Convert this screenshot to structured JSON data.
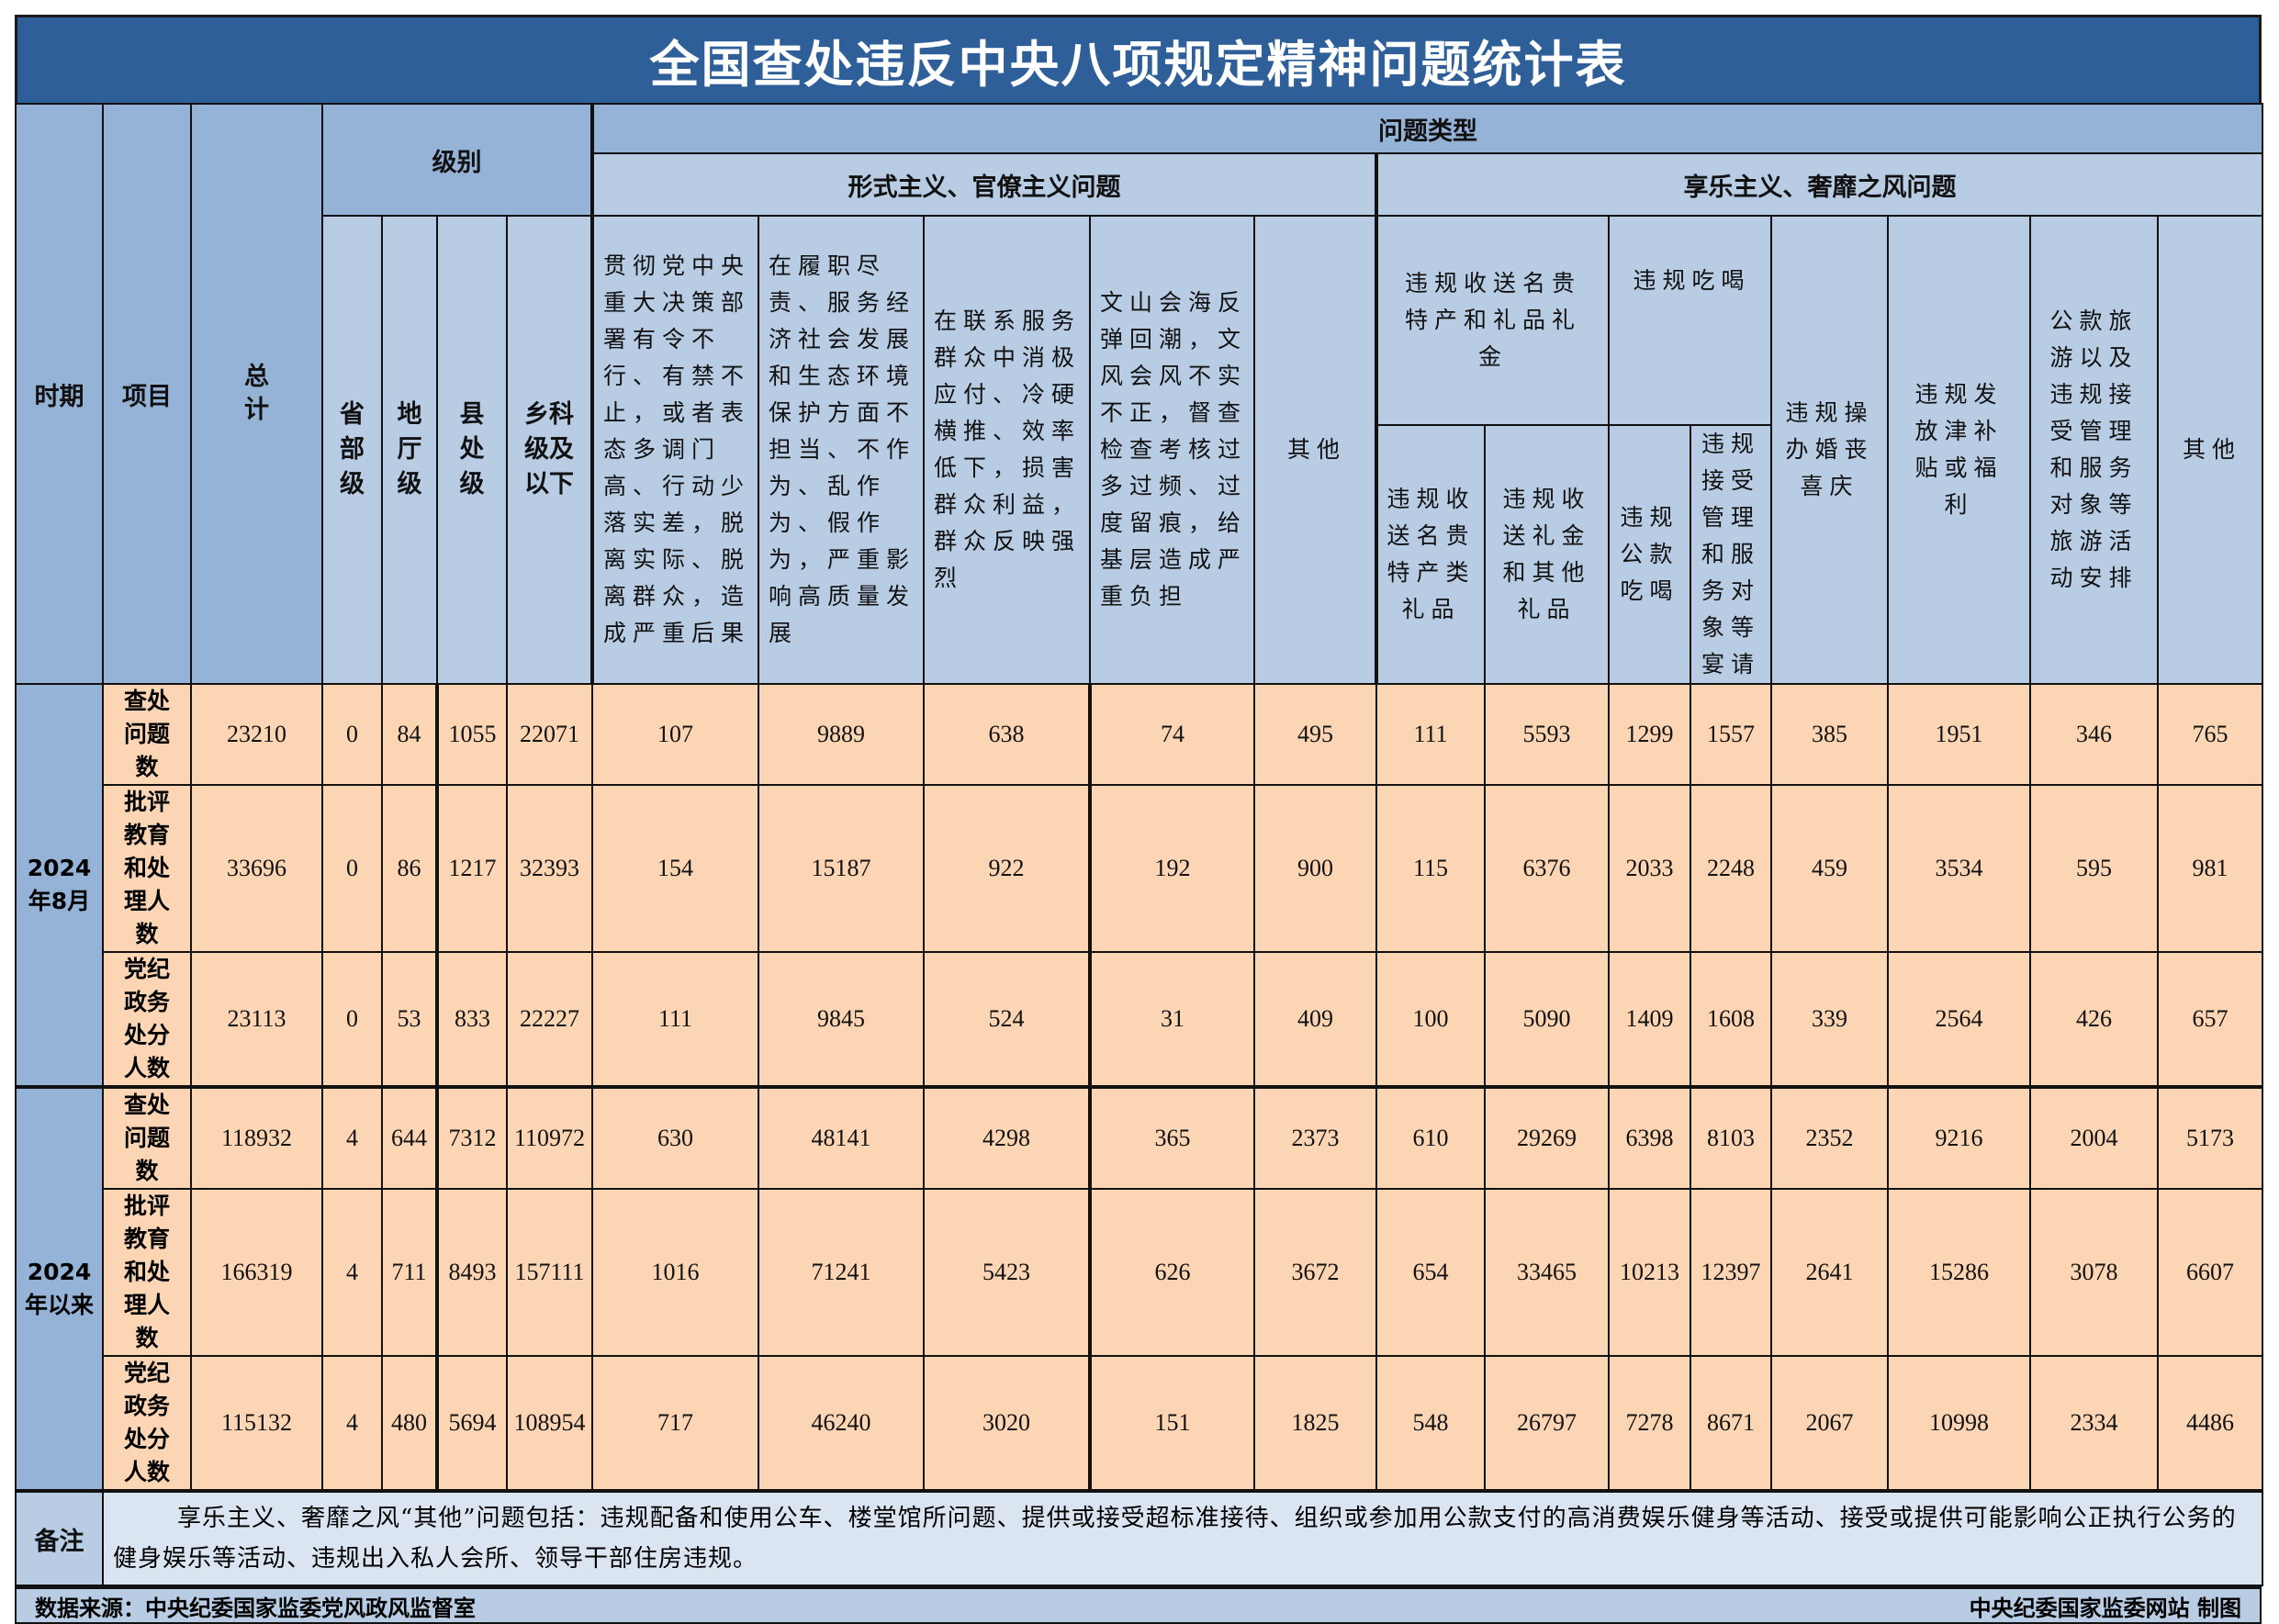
{
  "title": "全国查处违反中央八项规定精神问题统计表",
  "header": {
    "period": "时期",
    "item": "项目",
    "total": "总计",
    "level": "级别",
    "levels": [
      "省部级",
      "地厅级",
      "县处级",
      "乡科级及以下"
    ],
    "problem_type": "问题类型",
    "formalism": "形式主义、官僚主义问题",
    "formalism_cols": [
      "贯彻党中央重大决策部署有令不行、有禁不止，或者表态多调门高、行动少落实差，脱离实际、脱离群众，造成严重后果",
      "在履职尽责、服务经济社会发展和生态环境保护方面不担当、不作为、乱作为、假作为，严重影响高质量发展",
      "在联系服务群众中消极应付、冷硬横推、效率低下，损害群众利益，群众反映强烈",
      "文山会海反弹回潮，文风会风不实不正，督查检查考核过多过频、过度留痕，给基层造成严重负担",
      "其他"
    ],
    "hedonism": "享乐主义、奢靡之风问题",
    "gift_group": "违规收送名贵特产和礼品礼金",
    "gift_cols": [
      "违规收送名贵特产类礼品",
      "违规收送礼金和其他礼品"
    ],
    "dining_group": "违规吃喝",
    "dining_cols": [
      "违规公款吃喝",
      "违规接受管理和服务对象等宴请"
    ],
    "hedonism_cols": [
      "违规操办婚丧喜庆",
      "违规发放津补贴或福利",
      "公款旅游以及违规接受管理和服务对象等旅游活动安排",
      "其他"
    ]
  },
  "periods": [
    {
      "label": "2024年8月",
      "rows": [
        {
          "item": "查处问题数",
          "values": [
            "23210",
            "0",
            "84",
            "1055",
            "22071",
            "107",
            "9889",
            "638",
            "74",
            "495",
            "111",
            "5593",
            "1299",
            "1557",
            "385",
            "1951",
            "346",
            "765"
          ]
        },
        {
          "item": "批评教育和处理人数",
          "values": [
            "33696",
            "0",
            "86",
            "1217",
            "32393",
            "154",
            "15187",
            "922",
            "192",
            "900",
            "115",
            "6376",
            "2033",
            "2248",
            "459",
            "3534",
            "595",
            "981"
          ]
        },
        {
          "item": "党纪政务处分人数",
          "values": [
            "23113",
            "0",
            "53",
            "833",
            "22227",
            "111",
            "9845",
            "524",
            "31",
            "409",
            "100",
            "5090",
            "1409",
            "1608",
            "339",
            "2564",
            "426",
            "657"
          ]
        }
      ]
    },
    {
      "label": "2024年以来",
      "rows": [
        {
          "item": "查处问题数",
          "values": [
            "118932",
            "4",
            "644",
            "7312",
            "110972",
            "630",
            "48141",
            "4298",
            "365",
            "2373",
            "610",
            "29269",
            "6398",
            "8103",
            "2352",
            "9216",
            "2004",
            "5173"
          ]
        },
        {
          "item": "批评教育和处理人数",
          "values": [
            "166319",
            "4",
            "711",
            "8493",
            "157111",
            "1016",
            "71241",
            "5423",
            "626",
            "3672",
            "654",
            "33465",
            "10213",
            "12397",
            "2641",
            "15286",
            "3078",
            "6607"
          ]
        },
        {
          "item": "党纪政务处分人数",
          "values": [
            "115132",
            "4",
            "480",
            "5694",
            "108954",
            "717",
            "46240",
            "3020",
            "151",
            "1825",
            "548",
            "26797",
            "7278",
            "8671",
            "2067",
            "10998",
            "2334",
            "4486"
          ]
        }
      ]
    }
  ],
  "remark": {
    "label": "备注",
    "text": "享乐主义、奢靡之风“其他”问题包括：违规配备和使用公车、楼堂馆所问题、提供或接受超标准接待、组织或参加用公款支付的高消费娱乐健身等活动、接受或提供可能影响公正执行公务的健身娱乐等活动、违规出入私人会所、领导干部住房违规。"
  },
  "footer": {
    "source": "数据来源：中央纪委国家监委党风政风监督室",
    "credit": "中央纪委国家监委网站 制图"
  },
  "colors": {
    "title_bg": "#2f5f98",
    "header_bg": "#b8cce4",
    "header_dark": "#95b3d7",
    "cell_bg": "#fcd5b4"
  }
}
